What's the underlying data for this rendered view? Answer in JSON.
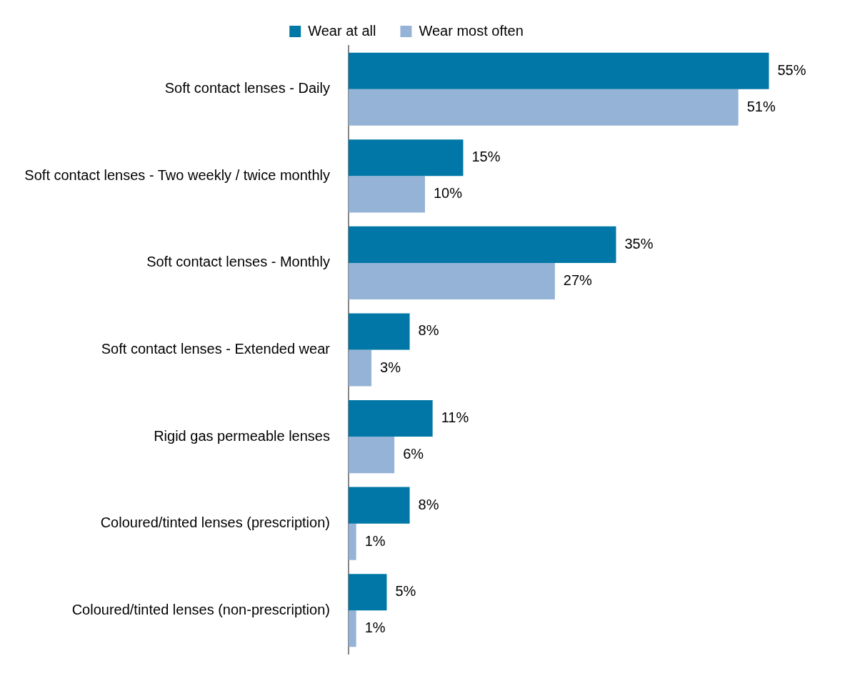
{
  "chart_data": {
    "type": "bar",
    "orientation": "horizontal",
    "legend": "top",
    "categories": [
      "Soft contact lenses - Daily",
      "Soft contact lenses - Two weekly / twice monthly",
      "Soft contact lenses - Monthly",
      "Soft contact lenses - Extended wear",
      "Rigid gas permeable lenses",
      "Coloured/tinted lenses (prescription)",
      "Coloured/tinted lenses (non-prescription)"
    ],
    "series": [
      {
        "name": "Wear at all",
        "color": "#0077a6",
        "values": [
          55,
          15,
          35,
          8,
          11,
          8,
          5
        ],
        "value_labels": [
          "55%",
          "15%",
          "35%",
          "8%",
          "11%",
          "8%",
          "5%"
        ]
      },
      {
        "name": "Wear most often",
        "color": "#95b3d7",
        "values": [
          51,
          10,
          27,
          3,
          6,
          1,
          1
        ],
        "value_labels": [
          "51%",
          "10%",
          "27%",
          "3%",
          "6%",
          "1%",
          "1%"
        ]
      }
    ]
  }
}
